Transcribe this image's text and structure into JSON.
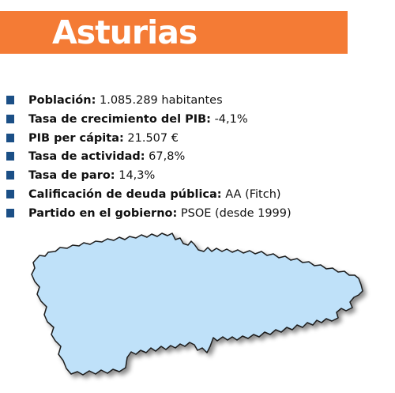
{
  "header": {
    "title": "Asturias",
    "banner_color": "#f47b35",
    "title_color": "#ffffff"
  },
  "facts": [
    {
      "label": "Población:",
      "value": " 1.085.289 habitantes"
    },
    {
      "label": "Tasa de crecimiento del PIB:",
      "value": " -4,1%"
    },
    {
      "label": "PIB per cápita:",
      "value": " 21.507 €"
    },
    {
      "label": "Tasa de actividad:",
      "value": " 67,8%"
    },
    {
      "label": "Tasa de paro:",
      "value": " 14,3%"
    },
    {
      "label": "Calificación de deuda pública:",
      "value": " AA (Fitch)"
    },
    {
      "label": "Partido en el gobierno:",
      "value": " PSOE (desde 1999)"
    }
  ],
  "bullet_color": "#1b4f86",
  "map": {
    "region": "Asturias",
    "fill_color": "#bfe1f9",
    "stroke_color": "#1c1c1c"
  }
}
